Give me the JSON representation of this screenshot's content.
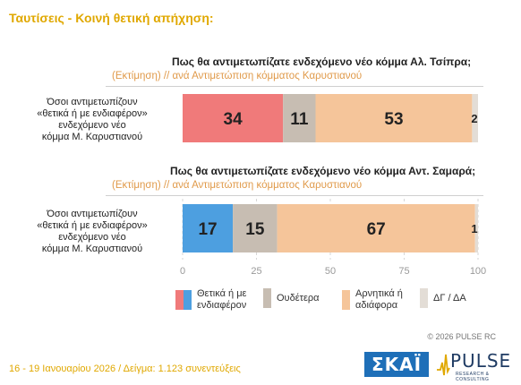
{
  "title": "Ταυτίσεις  -  Κοινή θετική απήχηση:",
  "chart_data": {
    "type": "bar",
    "orientation": "horizontal",
    "stacked": true,
    "xlim": [
      0,
      100
    ],
    "xticks": [
      0,
      25,
      50,
      75,
      100
    ],
    "grid": true,
    "legend_position": "bottom",
    "legend": [
      {
        "label": "Θετικά ή με ενδιαφέρον",
        "colors": [
          "#f07a7a",
          "#4d9fe0"
        ]
      },
      {
        "label": "Ουδέτερα",
        "colors": [
          "#c7bdb2"
        ]
      },
      {
        "label": "Αρνητικά ή αδιάφορα",
        "colors": [
          "#f5c59a"
        ]
      },
      {
        "label": "ΔΓ / ΔΑ",
        "colors": [
          "#e3ddd6"
        ]
      }
    ],
    "panels": [
      {
        "question": "Πως θα αντιμετωπίζατε ενδεχόμενο νέο κόμμα Αλ. Τσίπρα;",
        "subtitle": "(Εκτίμηση)   // ανά Αντιμετώπιση κόμματος Καρυστιανού",
        "category": "Όσοι αντιμετωπίζουν «θετικά ή με ενδιαφέρον» ενδεχόμενο νέο κόμμα Μ. Καρυστιανού",
        "category_lines": [
          "Όσοι αντιμετωπίζουν",
          "«θετικά ή με ενδιαφέρον»",
          "ενδεχόμενο νέο",
          "κόμμα Μ. Καρυστιανού"
        ],
        "segments": [
          {
            "series": "Θετικά ή με ενδιαφέρον",
            "value": 34,
            "label": "34",
            "color": "#f07a7a"
          },
          {
            "series": "Ουδέτερα",
            "value": 11,
            "label": "11",
            "color": "#c7bdb2"
          },
          {
            "series": "Αρνητικά ή αδιάφορα",
            "value": 53,
            "label": "53",
            "color": "#f5c59a"
          },
          {
            "series": "ΔΓ / ΔΑ",
            "value": 2,
            "label": "2",
            "color": "#e3ddd6"
          }
        ]
      },
      {
        "question": "Πως θα αντιμετωπίζατε ενδεχόμενο νέο κόμμα Αντ. Σαμαρά;",
        "subtitle": "(Εκτίμηση)   // ανά Αντιμετώπιση κόμματος Καρυστιανού",
        "category": "Όσοι αντιμετωπίζουν «θετικά ή με ενδιαφέρον» ενδεχόμενο νέο κόμμα Μ. Καρυστιανού",
        "category_lines": [
          "Όσοι αντιμετωπίζουν",
          "«θετικά ή με ενδιαφέρον»",
          "ενδεχόμενο νέο",
          "κόμμα Μ. Καρυστιανού"
        ],
        "segments": [
          {
            "series": "Θετικά ή με ενδιαφέρον",
            "value": 17,
            "label": "17",
            "color": "#4d9fe0"
          },
          {
            "series": "Ουδέτερα",
            "value": 15,
            "label": "15",
            "color": "#c7bdb2"
          },
          {
            "series": "Αρνητικά ή αδιάφορα",
            "value": 67,
            "label": "67",
            "color": "#f5c59a"
          },
          {
            "series": "ΔΓ / ΔΑ",
            "value": 1,
            "label": "1",
            "color": "#e3ddd6"
          }
        ]
      }
    ]
  },
  "legend_lines": [
    [
      "Θετικά ή με",
      "ενδιαφέρον"
    ],
    [
      "Ουδέτερα"
    ],
    [
      "Αρνητικά ή",
      "αδιάφορα"
    ],
    [
      "ΔΓ / ΔΑ"
    ]
  ],
  "copyright": "© 2026  PULSE RC",
  "footer": "16 - 19 Ιανουαρίου 2026  /  Δείγμα:  1.123 συνεντεύξεις",
  "logos": {
    "skai": "ΣΚΑΪ",
    "pulse": "PULSE",
    "pulse_tagline": "RESEARCH & CONSULTING"
  }
}
